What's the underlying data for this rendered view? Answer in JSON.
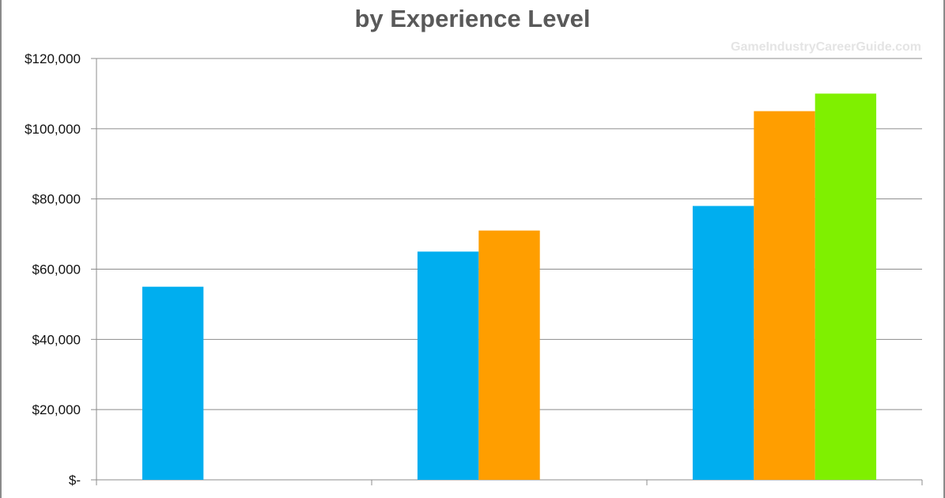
{
  "title": "by Experience Level",
  "watermark": "GameIndustryCareerGuide.com",
  "colors": {
    "series1": "#00AEEF",
    "series2": "#FF9E00",
    "series3": "#7FF000",
    "grid": "#8c8c8c"
  },
  "chart_data": {
    "type": "bar",
    "title": "by Experience Level",
    "xlabel": "",
    "ylabel": "",
    "categories": [
      "",
      "",
      ""
    ],
    "series": [
      {
        "values": [
          55000,
          65000,
          78000
        ]
      },
      {
        "values": [
          null,
          71000,
          105000
        ]
      },
      {
        "values": [
          null,
          null,
          110000
        ]
      }
    ],
    "ylim": [
      0,
      120000
    ],
    "yticks": [
      0,
      20000,
      40000,
      60000,
      80000,
      100000,
      120000
    ],
    "ytick_labels": [
      "$-",
      "$20,000",
      "$40,000",
      "$60,000",
      "$80,000",
      "$100,000",
      "$120,000"
    ],
    "grid": true,
    "legend": "none"
  }
}
